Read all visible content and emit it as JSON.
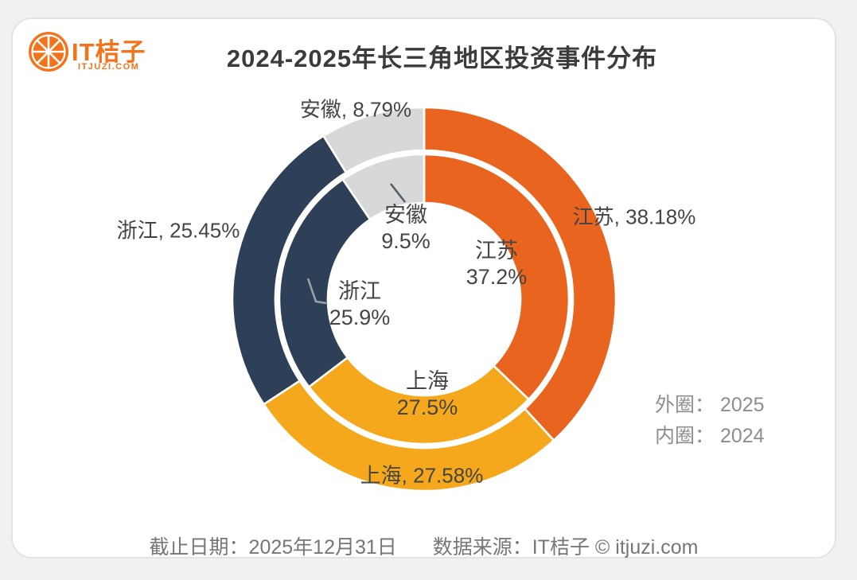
{
  "logo": {
    "name": "IT桔子",
    "domain": "ITJUZI.COM",
    "color": "#F3731B"
  },
  "header": {
    "title": "2024-2025年长三角地区投资事件分布"
  },
  "chart_data": {
    "type": "donut",
    "title": "2024-2025年长三角地区投资事件分布",
    "categories": [
      "江苏",
      "上海",
      "浙江",
      "安徽"
    ],
    "colors": [
      "#E9641E",
      "#F6A81C",
      "#2E4057",
      "#D6D8DA"
    ],
    "series": [
      {
        "name": "2025",
        "ring": "outer",
        "values": [
          38.18,
          27.58,
          25.45,
          8.79
        ]
      },
      {
        "name": "2024",
        "ring": "inner",
        "values": [
          37.2,
          27.5,
          25.9,
          9.5
        ]
      }
    ],
    "legend_position": "right",
    "start_angle_deg": 0,
    "direction": "clockwise"
  },
  "labels": {
    "outer": {
      "jiangsu": "江苏, 38.18%",
      "shanghai": "上海, 27.58%",
      "zhejiang": "浙江, 25.45%",
      "anhui": "安徽, 8.79%"
    },
    "inner": {
      "jiangsu": {
        "name": "江苏",
        "value": "37.2%"
      },
      "shanghai": {
        "name": "上海",
        "value": "27.5%"
      },
      "zhejiang": {
        "name": "浙江",
        "value": "25.9%"
      },
      "anhui": {
        "name": "安徽",
        "value": "9.5%"
      }
    }
  },
  "legend": {
    "outer": "外圈： 2025",
    "inner": "内圈： 2024"
  },
  "footer": {
    "date": "截止日期：2025年12月31日",
    "source": "数据来源：IT桔子 © itjuzi.com"
  }
}
